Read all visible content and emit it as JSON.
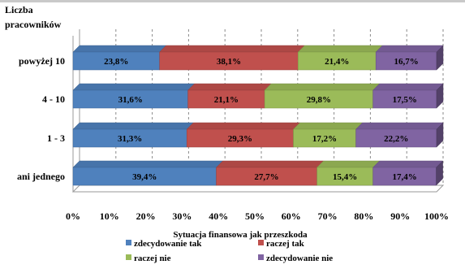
{
  "chart_data": {
    "type": "bar",
    "orientation": "horizontal",
    "stacked": "100%",
    "ylabel": "Liczba pracowników",
    "ylabel_lines": [
      "Liczba",
      "pracowników"
    ],
    "xlabel": "Sytuacja finansowa jak przeszkoda",
    "xlim": [
      0,
      100
    ],
    "x_ticks": [
      "0%",
      "10%",
      "20%",
      "30%",
      "40%",
      "50%",
      "60%",
      "70%",
      "80%",
      "90%",
      "100%"
    ],
    "grid": "vertical dashed",
    "legend_position": "bottom",
    "categories": [
      "powyżej 10",
      "4 - 10",
      "1 - 3",
      "ani jednego"
    ],
    "series": [
      {
        "name": "zdecydowanie tak",
        "color": "#4f81bd",
        "values": [
          23.8,
          31.6,
          31.3,
          39.4
        ],
        "labels": [
          "23,8%",
          "31,6%",
          "31,3%",
          "39,4%"
        ]
      },
      {
        "name": "raczej tak",
        "color": "#c0504d",
        "values": [
          38.1,
          21.1,
          29.3,
          27.7
        ],
        "labels": [
          "38,1%",
          "21,1%",
          "29,3%",
          "27,7%"
        ]
      },
      {
        "name": "raczej nie",
        "color": "#9bbb59",
        "values": [
          21.4,
          29.8,
          17.2,
          15.4
        ],
        "labels": [
          "21,4%",
          "29,8%",
          "17,2%",
          "15,4%"
        ]
      },
      {
        "name": "zdecydowanie nie",
        "color": "#8064a2",
        "values": [
          16.7,
          17.5,
          22.2,
          17.4
        ],
        "labels": [
          "16,7%",
          "17,5%",
          "22,2%",
          "17,4%"
        ]
      }
    ]
  }
}
